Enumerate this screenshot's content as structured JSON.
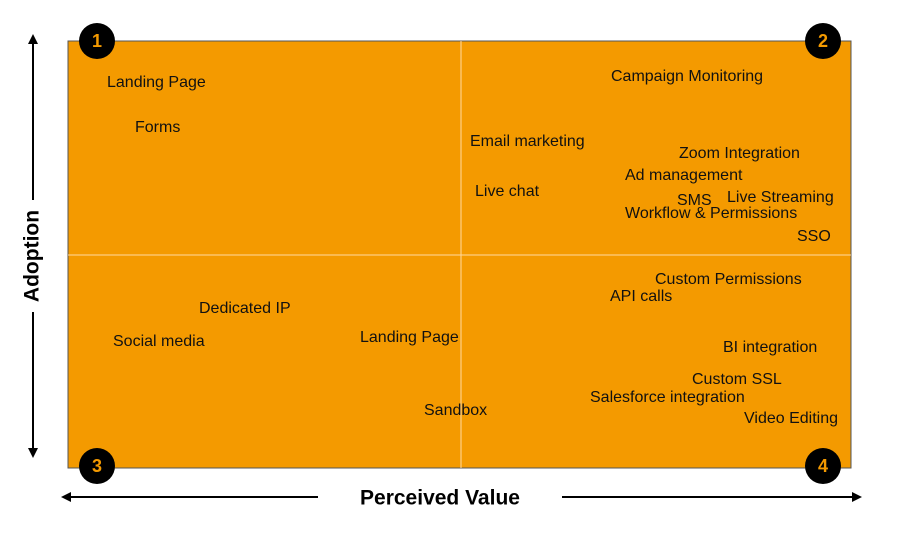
{
  "axes": {
    "y": "Adoption",
    "x": "Perceived Value"
  },
  "quadrants": [
    {
      "number": "1"
    },
    {
      "number": "2"
    },
    {
      "number": "3"
    },
    {
      "number": "4"
    }
  ],
  "items": [
    {
      "label": "Landing Page"
    },
    {
      "label": "Forms"
    },
    {
      "label": "Campaign Monitoring"
    },
    {
      "label": "Email marketing"
    },
    {
      "label": "Zoom Integration"
    },
    {
      "label": "Ad management"
    },
    {
      "label": "Live chat"
    },
    {
      "label": "SMS"
    },
    {
      "label": "Live Streaming"
    },
    {
      "label": "Workflow & Permissions"
    },
    {
      "label": "SSO"
    },
    {
      "label": "Custom Permissions"
    },
    {
      "label": "API calls"
    },
    {
      "label": "Dedicated IP"
    },
    {
      "label": "Social media"
    },
    {
      "label": "Landing Page"
    },
    {
      "label": "BI integration"
    },
    {
      "label": "Custom SSL"
    },
    {
      "label": "Salesforce integration"
    },
    {
      "label": "Sandbox"
    },
    {
      "label": "Video Editing"
    }
  ]
}
